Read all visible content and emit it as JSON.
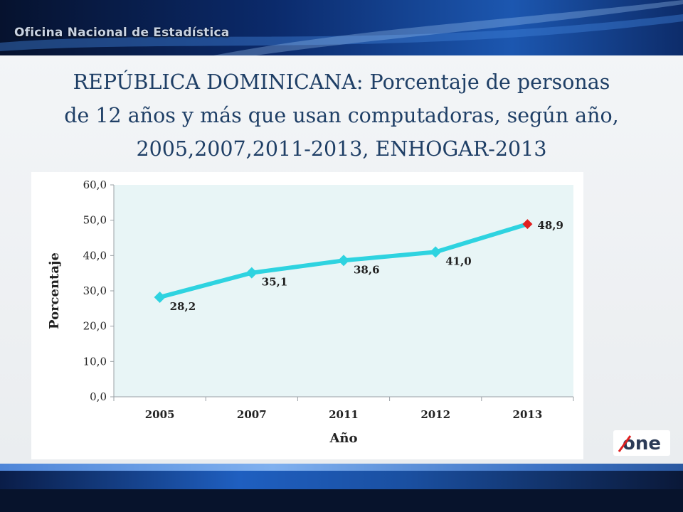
{
  "header": {
    "brand": "Oficina Nacional de Estadística"
  },
  "slide": {
    "title_line1": "REPÚBLICA DOMINICANA: Porcentaje de personas",
    "title_line2": "de 12 años y más que usan computadoras, según año,",
    "title_line3": "2005,2007,2011-2013, ENHOGAR-2013"
  },
  "logo": {
    "text": "one",
    "icon": "one-logo-icon"
  },
  "colors": {
    "line": "#2ed3e0",
    "highlight_marker": "#e02020",
    "plot_bg": "#e8f5f6",
    "title": "#1f3f66"
  },
  "chart_data": {
    "type": "line",
    "categories": [
      "2005",
      "2007",
      "2011",
      "2012",
      "2013"
    ],
    "series": [
      {
        "values": [
          28.2,
          35.1,
          38.6,
          41.0,
          48.9
        ]
      }
    ],
    "data_labels": [
      "28,2",
      "35,1",
      "38,6",
      "41,0",
      "48,9"
    ],
    "y_ticks": [
      "0,0",
      "10,0",
      "20,0",
      "30,0",
      "40,0",
      "50,0",
      "60,0"
    ],
    "ylim": [
      0,
      60
    ],
    "xlabel": "Año",
    "ylabel": "Porcentaje",
    "grid": false,
    "highlight_last_point": true
  }
}
